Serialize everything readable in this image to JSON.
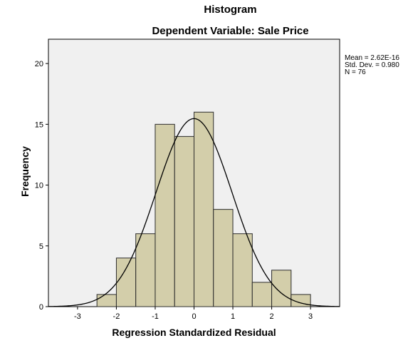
{
  "chart_data": {
    "type": "bar",
    "title": "Histogram",
    "subtitle": "Dependent Variable: Sale Price",
    "xlabel": "Regression Standardized Residual",
    "ylabel": "Frequency",
    "xlim": [
      -3.75,
      3.75
    ],
    "ylim": [
      0,
      22
    ],
    "x_ticks": [
      -3,
      -2,
      -1,
      0,
      1,
      2,
      3
    ],
    "y_ticks": [
      0,
      5,
      10,
      15,
      20
    ],
    "bins": [
      {
        "from": -2.5,
        "to": -2.0,
        "value": 1
      },
      {
        "from": -2.0,
        "to": -1.5,
        "value": 4
      },
      {
        "from": -1.5,
        "to": -1.0,
        "value": 6
      },
      {
        "from": -1.0,
        "to": -0.5,
        "value": 15
      },
      {
        "from": -0.5,
        "to": 0.0,
        "value": 14
      },
      {
        "from": 0.0,
        "to": 0.5,
        "value": 16
      },
      {
        "from": 0.5,
        "to": 1.0,
        "value": 8
      },
      {
        "from": 1.0,
        "to": 1.5,
        "value": 6
      },
      {
        "from": 1.5,
        "to": 2.0,
        "value": 2
      },
      {
        "from": 2.0,
        "to": 2.5,
        "value": 3
      },
      {
        "from": 2.5,
        "to": 3.0,
        "value": 1
      }
    ],
    "normal_curve": {
      "mean": 0,
      "std_dev": 0.98,
      "n": 76,
      "bin_width": 0.5
    },
    "stats": {
      "mean": "Mean = 2.62E-16",
      "std_dev": "Std. Dev. = 0.980",
      "n": "N = 76"
    },
    "grid": false,
    "colors": {
      "plot_background": "#f0f0f0",
      "bar_fill": "#d3ceaa",
      "bar_stroke": "#2b2b2b",
      "curve": "#000000"
    }
  }
}
